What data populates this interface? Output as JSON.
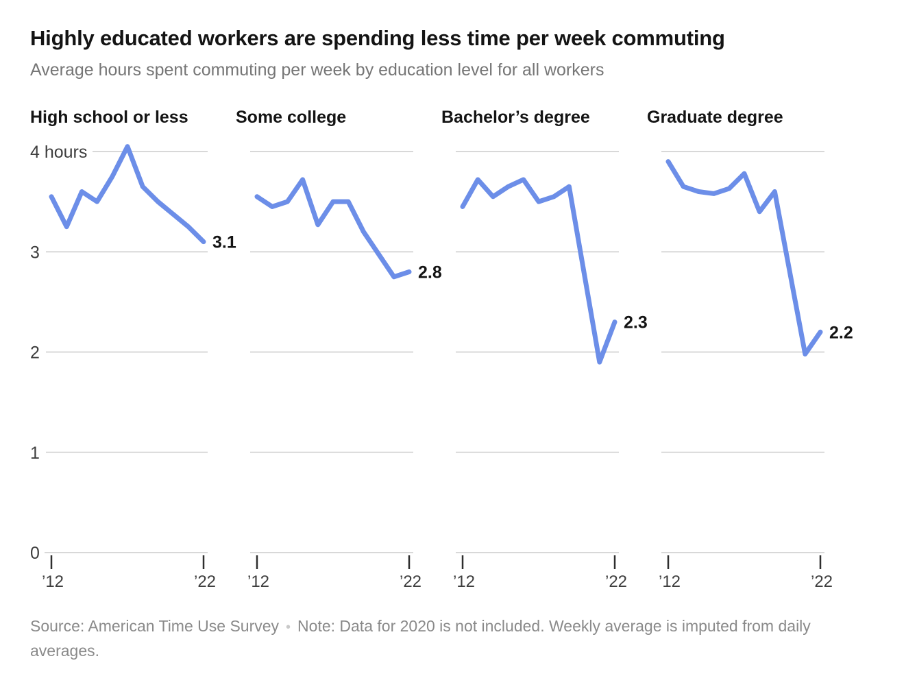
{
  "header": {
    "title": "Highly educated workers are spending less time per week commuting",
    "subtitle": "Average hours spent commuting per week by education level for all workers"
  },
  "footer": {
    "source": "Source: American Time Use Survey",
    "separator": "•",
    "note": "Note: Data for 2020 is not included. Weekly average is imputed from daily averages."
  },
  "chart_data": {
    "type": "line",
    "title": "Highly educated workers are spending less time per week commuting",
    "subtitle": "Average hours spent commuting per week by education level for all workers",
    "x": [
      2012,
      2013,
      2014,
      2015,
      2016,
      2017,
      2018,
      2019,
      2021,
      2022
    ],
    "x_note": "Year 2020 is omitted from the x axis (gap between 2019 and 2021)",
    "x_axis": {
      "ticks": [
        {
          "year": 2012,
          "label": "’12"
        },
        {
          "year": 2022,
          "label": "’22"
        }
      ]
    },
    "y_axis": {
      "min": 0,
      "max": 4,
      "unit": "hours",
      "ticks": [
        {
          "value": 4,
          "label": "4 hours"
        },
        {
          "value": 3,
          "label": "3"
        },
        {
          "value": 2,
          "label": "2"
        },
        {
          "value": 1,
          "label": "1"
        },
        {
          "value": 0,
          "label": "0"
        }
      ]
    },
    "grid": true,
    "legend": "none",
    "line_color": "#6C8EE8",
    "grid_color": "#D8D8D8",
    "tick_color": "#2e2e2e",
    "panels": [
      {
        "title": "High school or less",
        "end_label": "3.1",
        "values": [
          3.55,
          3.25,
          3.6,
          3.5,
          3.75,
          4.05,
          3.65,
          3.5,
          3.25,
          3.1
        ]
      },
      {
        "title": "Some college",
        "end_label": "2.8",
        "values": [
          3.55,
          3.45,
          3.5,
          3.72,
          3.27,
          3.5,
          3.5,
          3.2,
          2.75,
          2.8
        ]
      },
      {
        "title": "Bachelor’s degree",
        "end_label": "2.3",
        "values": [
          3.45,
          3.72,
          3.55,
          3.65,
          3.72,
          3.5,
          3.55,
          3.65,
          1.9,
          2.3
        ]
      },
      {
        "title": "Graduate degree",
        "end_label": "2.2",
        "values": [
          3.9,
          3.65,
          3.6,
          3.58,
          3.63,
          3.78,
          3.4,
          3.6,
          1.98,
          2.2
        ]
      }
    ]
  }
}
